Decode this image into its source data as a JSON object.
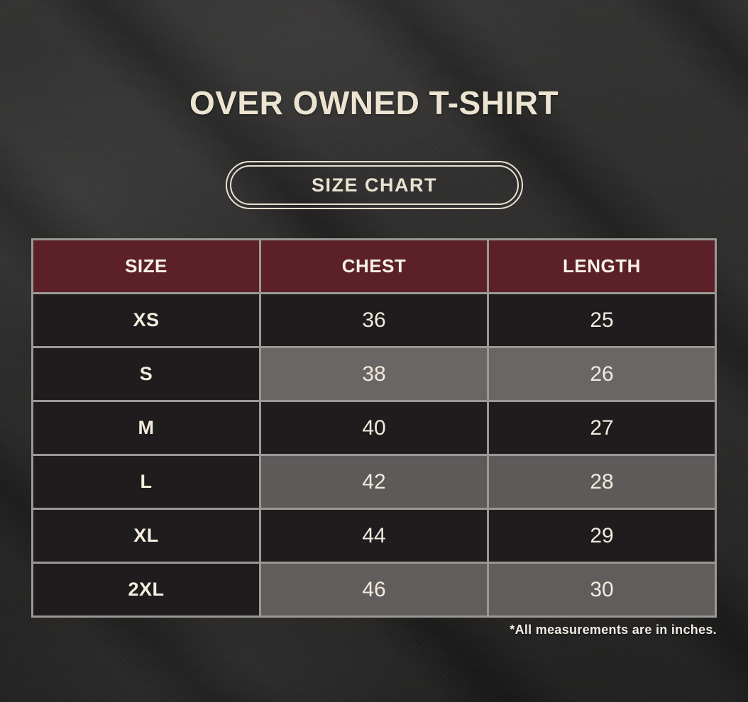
{
  "chart_data": {
    "type": "table",
    "title": "OVER OWNED T-SHIRT",
    "badge": "SIZE CHART",
    "columns": [
      "SIZE",
      "CHEST",
      "LENGTH"
    ],
    "rows": [
      {
        "size": "XS",
        "chest": "36",
        "length": "25"
      },
      {
        "size": "S",
        "chest": "38",
        "length": "26"
      },
      {
        "size": "M",
        "chest": "40",
        "length": "27"
      },
      {
        "size": "L",
        "chest": "42",
        "length": "28"
      },
      {
        "size": "XL",
        "chest": "44",
        "length": "29"
      },
      {
        "size": "2XL",
        "chest": "46",
        "length": "30"
      }
    ],
    "footnote": "*All measurements are in inches.",
    "units": "inches"
  },
  "colors": {
    "header_maroon": "#5c2128",
    "cream_text": "#ece4d1",
    "dark_cell": "#1e1c1c",
    "gray_cell": "#636060",
    "cell_border": "#9b9895",
    "background": "#2f2e2d"
  }
}
